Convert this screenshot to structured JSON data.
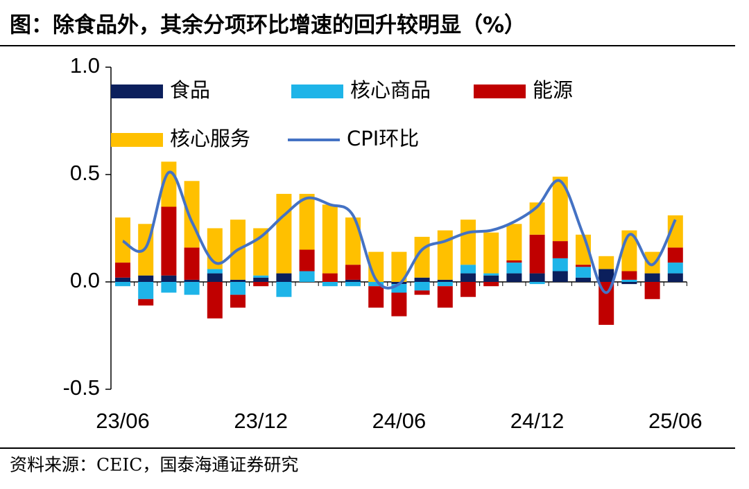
{
  "chart_data": {
    "type": "bar",
    "title": "图：除食品外，其余分项环比增速的回升较明显（%）",
    "source": "资料来源：CEIC，国泰海通证券研究",
    "categories": [
      "23/06",
      null,
      null,
      null,
      null,
      null,
      "23/12",
      null,
      null,
      null,
      null,
      null,
      "24/06",
      null,
      null,
      null,
      null,
      null,
      "24/12",
      null,
      null,
      null,
      null,
      null,
      "25/06"
    ],
    "series": [
      {
        "name": "食品",
        "color": "#0b1f5c",
        "values": [
          0.02,
          0.03,
          0.03,
          0.01,
          0.04,
          0.01,
          0.02,
          0.04,
          0.0,
          0.0,
          0.01,
          0.0,
          -0.01,
          0.02,
          0.01,
          0.04,
          0.03,
          0.04,
          0.04,
          0.05,
          0.02,
          0.06,
          -0.01,
          0.04,
          0.04
        ]
      },
      {
        "name": "核心商品",
        "color": "#1eb4e8",
        "values": [
          -0.02,
          -0.08,
          -0.05,
          -0.06,
          0.02,
          -0.06,
          0.01,
          -0.07,
          0.05,
          -0.02,
          -0.02,
          -0.02,
          -0.04,
          -0.04,
          -0.02,
          0.04,
          0.01,
          0.05,
          -0.01,
          0.06,
          0.05,
          0.0,
          0.01,
          0.0,
          0.05
        ]
      },
      {
        "name": "能源",
        "color": "#c00000",
        "values": [
          0.07,
          -0.03,
          0.32,
          0.15,
          -0.17,
          -0.06,
          -0.02,
          0.0,
          0.1,
          0.04,
          0.07,
          -0.1,
          -0.11,
          -0.02,
          -0.1,
          -0.07,
          -0.02,
          0.01,
          0.18,
          0.08,
          0.01,
          -0.2,
          0.04,
          -0.08,
          0.07
        ]
      },
      {
        "name": "核心服务",
        "color": "#ffc000",
        "values": [
          0.21,
          0.24,
          0.21,
          0.31,
          0.19,
          0.28,
          0.22,
          0.37,
          0.26,
          0.32,
          0.22,
          0.14,
          0.14,
          0.19,
          0.23,
          0.21,
          0.19,
          0.17,
          0.15,
          0.3,
          0.14,
          0.06,
          0.19,
          0.1,
          0.15
        ]
      },
      {
        "name": "CPI环比",
        "type": "line",
        "color": "#4472c4",
        "values": [
          0.19,
          0.16,
          0.51,
          0.28,
          0.09,
          0.15,
          0.21,
          0.31,
          0.39,
          0.36,
          0.31,
          0.01,
          -0.01,
          0.15,
          0.19,
          0.23,
          0.24,
          0.28,
          0.35,
          0.47,
          0.22,
          -0.05,
          0.22,
          0.08,
          0.29
        ]
      }
    ],
    "ylim": [
      -0.5,
      1.0
    ],
    "yticks": [
      {
        "value": -0.5,
        "label": "-0.5"
      },
      {
        "value": 0.0,
        "label": "0.0"
      },
      0.5,
      {
        "value": 1.0,
        "label": "1.0"
      }
    ],
    "stacked": true
  }
}
